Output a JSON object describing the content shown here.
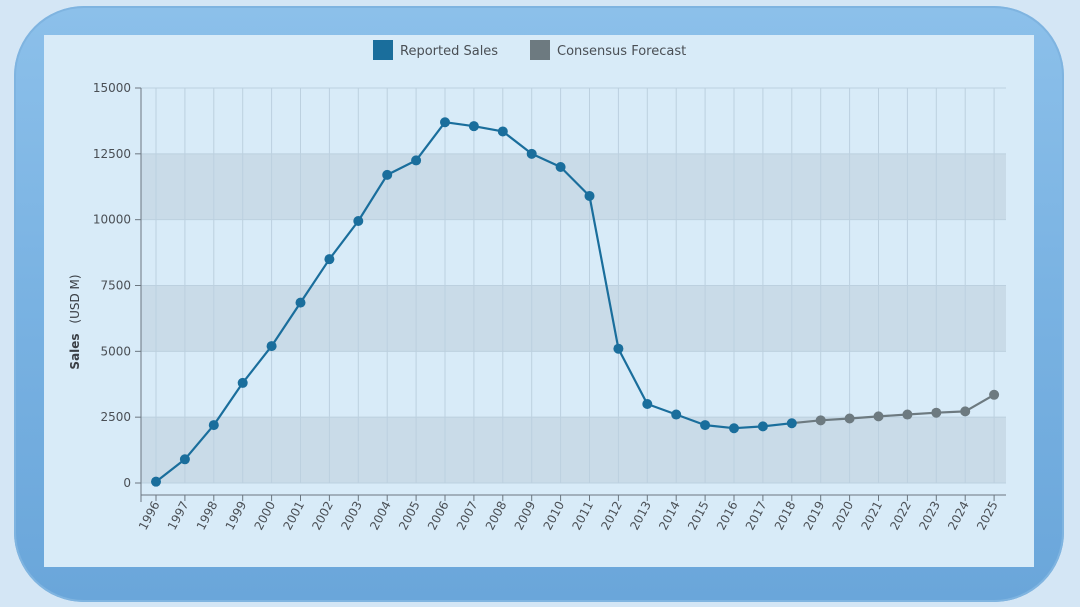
{
  "colors": {
    "reported": "#1a6e9c",
    "forecast": "#6d7a80",
    "band": "#c9dbe8",
    "grid": "#bcd0df",
    "axis": "#6b7680"
  },
  "chart_data": {
    "type": "line",
    "ylabel": "Sales",
    "ylabel_unit": "(USD M)",
    "ylim": [
      0,
      15000
    ],
    "yticks": [
      0,
      2500,
      5000,
      7500,
      10000,
      12500,
      15000
    ],
    "categories": [
      "1996",
      "1997",
      "1998",
      "1999",
      "2000",
      "2001",
      "2002",
      "2003",
      "2004",
      "2005",
      "2006",
      "2007",
      "2008",
      "2009",
      "2010",
      "2011",
      "2012",
      "2013",
      "2014",
      "2015",
      "2016",
      "2017",
      "2018",
      "2019",
      "2020",
      "2021",
      "2022",
      "2023",
      "2024",
      "2025"
    ],
    "legend_position": "top",
    "series": [
      {
        "name": "Reported Sales",
        "values": [
          50,
          900,
          2200,
          3800,
          5200,
          6850,
          8500,
          9950,
          11700,
          12250,
          13700,
          13550,
          13350,
          12500,
          12000,
          10900,
          5100,
          3000,
          2600,
          2200,
          2080,
          2150,
          2270,
          null,
          null,
          null,
          null,
          null,
          null,
          null
        ]
      },
      {
        "name": "Consensus Forecast",
        "values": [
          null,
          null,
          null,
          null,
          null,
          null,
          null,
          null,
          null,
          null,
          null,
          null,
          null,
          null,
          null,
          null,
          null,
          null,
          null,
          null,
          null,
          null,
          2270,
          2380,
          2450,
          2530,
          2600,
          2670,
          2720,
          3350
        ]
      }
    ]
  }
}
